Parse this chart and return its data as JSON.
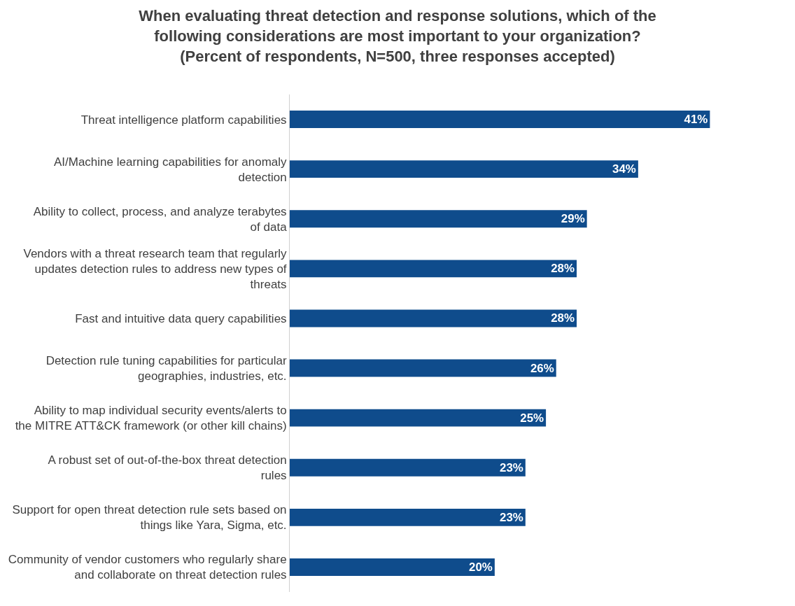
{
  "chart_data": {
    "type": "bar",
    "orientation": "horizontal",
    "title": "When evaluating threat detection and response solutions, which of the following considerations are most important to your organization? (Percent of respondents, N=500, three responses accepted)",
    "categories": [
      "Threat intelligence platform capabilities",
      "AI/Machine learning capabilities for anomaly detection",
      "Ability to collect, process, and analyze terabytes of data",
      "Vendors with a threat research team that regularly updates detection rules to address new types of threats",
      "Fast and intuitive data query capabilities",
      "Detection rule tuning capabilities for particular geographies, industries, etc.",
      "Ability to map individual security events/alerts to the MITRE ATT&CK framework (or other kill chains)",
      "A robust set of out-of-the-box threat detection rules",
      "Support for open threat detection rule sets based on things like Yara, Sigma, etc.",
      "Community of vendor customers who regularly share and collaborate on threat detection rules"
    ],
    "values": [
      41,
      34,
      29,
      28,
      28,
      26,
      25,
      23,
      23,
      20
    ],
    "value_labels": [
      "41%",
      "34%",
      "29%",
      "28%",
      "28%",
      "26%",
      "25%",
      "23%",
      "23%",
      "20%"
    ],
    "color": "#0f4c8c",
    "grid": false
  }
}
